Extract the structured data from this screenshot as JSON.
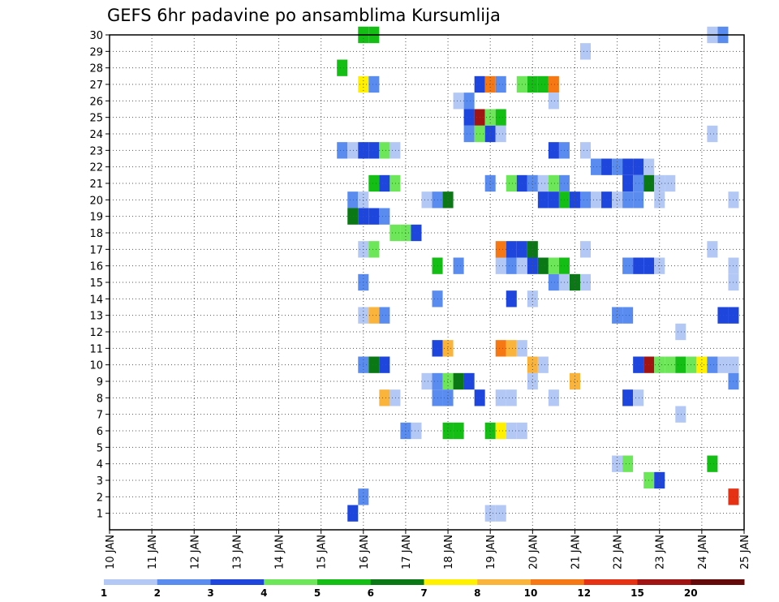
{
  "chart_data": {
    "type": "heatmap",
    "title": "GEFS 6hr padavine po ansamblima Kursumlija",
    "xlabel": "",
    "ylabel": "",
    "x_tick_labels": [
      "10 JAN",
      "11 JAN",
      "12 JAN",
      "13 JAN",
      "14 JAN",
      "15 JAN",
      "16 JAN",
      "17 JAN",
      "18 JAN",
      "19 JAN",
      "20 JAN",
      "21 JAN",
      "22 JAN",
      "23 JAN",
      "24 JAN",
      "25 JAN"
    ],
    "x_range_days": [
      10,
      25
    ],
    "y_tick_labels": [
      "1",
      "2",
      "3",
      "4",
      "5",
      "6",
      "7",
      "8",
      "9",
      "10",
      "11",
      "12",
      "13",
      "14",
      "15",
      "16",
      "17",
      "18",
      "19",
      "20",
      "21",
      "22",
      "23",
      "24",
      "25",
      "26",
      "27",
      "28",
      "29",
      "30"
    ],
    "y_range": [
      0,
      30
    ],
    "grid": true,
    "colorbar": {
      "labels": [
        "1",
        "2",
        "3",
        "4",
        "5",
        "6",
        "7",
        "8",
        "10",
        "12",
        "15",
        "20"
      ],
      "colors": [
        "#b4c8f5",
        "#5a8cf0",
        "#1e46dc",
        "#6ee65a",
        "#14be14",
        "#0a7814",
        "#fff000",
        "#fab43c",
        "#f57814",
        "#e63214",
        "#a01414",
        "#640a0a"
      ]
    },
    "cells": [
      [
        16.0,
        30,
        5
      ],
      [
        16.25,
        30,
        5
      ],
      [
        24.25,
        30,
        1
      ],
      [
        24.5,
        30,
        2
      ],
      [
        21.25,
        29,
        1
      ],
      [
        15.5,
        28,
        5
      ],
      [
        16.0,
        27,
        7
      ],
      [
        16.25,
        27,
        2
      ],
      [
        18.75,
        27,
        3
      ],
      [
        19.0,
        27,
        9
      ],
      [
        19.25,
        27,
        2
      ],
      [
        19.75,
        27,
        4
      ],
      [
        20.0,
        27,
        5
      ],
      [
        20.25,
        27,
        5
      ],
      [
        20.5,
        27,
        9
      ],
      [
        18.25,
        26,
        1
      ],
      [
        18.5,
        26,
        2
      ],
      [
        20.5,
        26,
        1
      ],
      [
        18.5,
        25,
        3
      ],
      [
        18.75,
        25,
        11
      ],
      [
        19.0,
        25,
        4
      ],
      [
        19.25,
        25,
        5
      ],
      [
        18.5,
        24,
        2
      ],
      [
        18.75,
        24,
        4
      ],
      [
        19.0,
        24,
        3
      ],
      [
        19.25,
        24,
        1
      ],
      [
        24.25,
        24,
        1
      ],
      [
        15.5,
        23,
        2
      ],
      [
        15.75,
        23,
        1
      ],
      [
        16.0,
        23,
        3
      ],
      [
        16.25,
        23,
        3
      ],
      [
        16.5,
        23,
        4
      ],
      [
        16.75,
        23,
        1
      ],
      [
        20.5,
        23,
        3
      ],
      [
        20.75,
        23,
        2
      ],
      [
        21.25,
        23,
        1
      ],
      [
        21.5,
        22,
        2
      ],
      [
        21.75,
        22,
        3
      ],
      [
        22.0,
        22,
        2
      ],
      [
        22.25,
        22,
        3
      ],
      [
        22.5,
        22,
        3
      ],
      [
        22.75,
        22,
        1
      ],
      [
        16.25,
        21,
        5
      ],
      [
        16.5,
        21,
        3
      ],
      [
        16.75,
        21,
        4
      ],
      [
        19.0,
        21,
        2
      ],
      [
        19.5,
        21,
        4
      ],
      [
        19.75,
        21,
        3
      ],
      [
        20.0,
        21,
        2
      ],
      [
        20.25,
        21,
        1
      ],
      [
        20.5,
        21,
        4
      ],
      [
        20.75,
        21,
        2
      ],
      [
        22.25,
        21,
        3
      ],
      [
        22.5,
        21,
        2
      ],
      [
        22.75,
        21,
        6
      ],
      [
        23.0,
        21,
        1
      ],
      [
        23.25,
        21,
        1
      ],
      [
        15.75,
        20,
        2
      ],
      [
        16.0,
        20,
        1
      ],
      [
        17.5,
        20,
        1
      ],
      [
        17.75,
        20,
        2
      ],
      [
        18.0,
        20,
        6
      ],
      [
        20.25,
        20,
        3
      ],
      [
        20.5,
        20,
        3
      ],
      [
        20.75,
        20,
        5
      ],
      [
        21.0,
        20,
        3
      ],
      [
        21.25,
        20,
        2
      ],
      [
        21.5,
        20,
        1
      ],
      [
        21.75,
        20,
        3
      ],
      [
        22.0,
        20,
        1
      ],
      [
        22.25,
        20,
        2
      ],
      [
        22.5,
        20,
        2
      ],
      [
        23.0,
        20,
        1
      ],
      [
        24.75,
        20,
        1
      ],
      [
        15.75,
        19,
        6
      ],
      [
        16.0,
        19,
        3
      ],
      [
        16.25,
        19,
        3
      ],
      [
        16.5,
        19,
        2
      ],
      [
        16.75,
        18,
        4
      ],
      [
        17.0,
        18,
        4
      ],
      [
        17.25,
        18,
        3
      ],
      [
        16.0,
        17,
        1
      ],
      [
        16.25,
        17,
        4
      ],
      [
        19.25,
        17,
        9
      ],
      [
        19.5,
        17,
        3
      ],
      [
        19.75,
        17,
        3
      ],
      [
        20.0,
        17,
        6
      ],
      [
        21.25,
        17,
        1
      ],
      [
        24.25,
        17,
        1
      ],
      [
        17.75,
        16,
        5
      ],
      [
        18.25,
        16,
        2
      ],
      [
        19.25,
        16,
        1
      ],
      [
        19.5,
        16,
        2
      ],
      [
        19.75,
        16,
        1
      ],
      [
        20.0,
        16,
        3
      ],
      [
        20.25,
        16,
        6
      ],
      [
        20.5,
        16,
        4
      ],
      [
        20.75,
        16,
        5
      ],
      [
        22.25,
        16,
        2
      ],
      [
        22.5,
        16,
        3
      ],
      [
        22.75,
        16,
        3
      ],
      [
        23.0,
        16,
        1
      ],
      [
        24.75,
        16,
        1
      ],
      [
        16.0,
        15,
        2
      ],
      [
        20.5,
        15,
        2
      ],
      [
        20.75,
        15,
        1
      ],
      [
        21.0,
        15,
        6
      ],
      [
        21.25,
        15,
        1
      ],
      [
        24.75,
        15,
        1
      ],
      [
        17.75,
        14,
        2
      ],
      [
        19.5,
        14,
        3
      ],
      [
        20.0,
        14,
        1
      ],
      [
        16.0,
        13,
        1
      ],
      [
        16.25,
        13,
        8
      ],
      [
        16.5,
        13,
        2
      ],
      [
        22.0,
        13,
        2
      ],
      [
        22.25,
        13,
        2
      ],
      [
        24.5,
        13,
        3
      ],
      [
        24.75,
        13,
        3
      ],
      [
        23.5,
        12,
        1
      ],
      [
        17.75,
        11,
        3
      ],
      [
        18.0,
        11,
        8
      ],
      [
        19.25,
        11,
        9
      ],
      [
        19.5,
        11,
        8
      ],
      [
        19.75,
        11,
        1
      ],
      [
        16.0,
        10,
        2
      ],
      [
        16.25,
        10,
        6
      ],
      [
        16.5,
        10,
        3
      ],
      [
        20.0,
        10,
        8
      ],
      [
        20.25,
        10,
        1
      ],
      [
        22.5,
        10,
        3
      ],
      [
        22.75,
        10,
        11
      ],
      [
        23.0,
        10,
        4
      ],
      [
        23.25,
        10,
        4
      ],
      [
        23.5,
        10,
        5
      ],
      [
        23.75,
        10,
        4
      ],
      [
        24.0,
        10,
        7
      ],
      [
        24.25,
        10,
        2
      ],
      [
        24.5,
        10,
        1
      ],
      [
        24.75,
        10,
        1
      ],
      [
        17.5,
        9,
        1
      ],
      [
        17.75,
        9,
        2
      ],
      [
        18.0,
        9,
        4
      ],
      [
        18.25,
        9,
        6
      ],
      [
        18.5,
        9,
        3
      ],
      [
        20.0,
        9,
        1
      ],
      [
        21.0,
        9,
        8
      ],
      [
        24.75,
        9,
        2
      ],
      [
        16.5,
        8,
        8
      ],
      [
        16.75,
        8,
        1
      ],
      [
        17.75,
        8,
        2
      ],
      [
        18.0,
        8,
        2
      ],
      [
        18.75,
        8,
        3
      ],
      [
        19.25,
        8,
        1
      ],
      [
        19.5,
        8,
        1
      ],
      [
        20.5,
        8,
        1
      ],
      [
        22.25,
        8,
        3
      ],
      [
        22.5,
        8,
        1
      ],
      [
        23.5,
        7,
        1
      ],
      [
        17.0,
        6,
        2
      ],
      [
        17.25,
        6,
        1
      ],
      [
        18.0,
        6,
        5
      ],
      [
        18.25,
        6,
        5
      ],
      [
        19.0,
        6,
        5
      ],
      [
        19.25,
        6,
        7
      ],
      [
        19.5,
        6,
        1
      ],
      [
        19.75,
        6,
        1
      ],
      [
        22.0,
        4,
        1
      ],
      [
        22.25,
        4,
        4
      ],
      [
        24.25,
        4,
        5
      ],
      [
        22.75,
        3,
        4
      ],
      [
        23.0,
        3,
        3
      ],
      [
        16.0,
        2,
        2
      ],
      [
        24.75,
        2,
        10
      ],
      [
        15.75,
        1,
        3
      ],
      [
        19.0,
        1,
        1
      ],
      [
        19.25,
        1,
        1
      ]
    ]
  }
}
